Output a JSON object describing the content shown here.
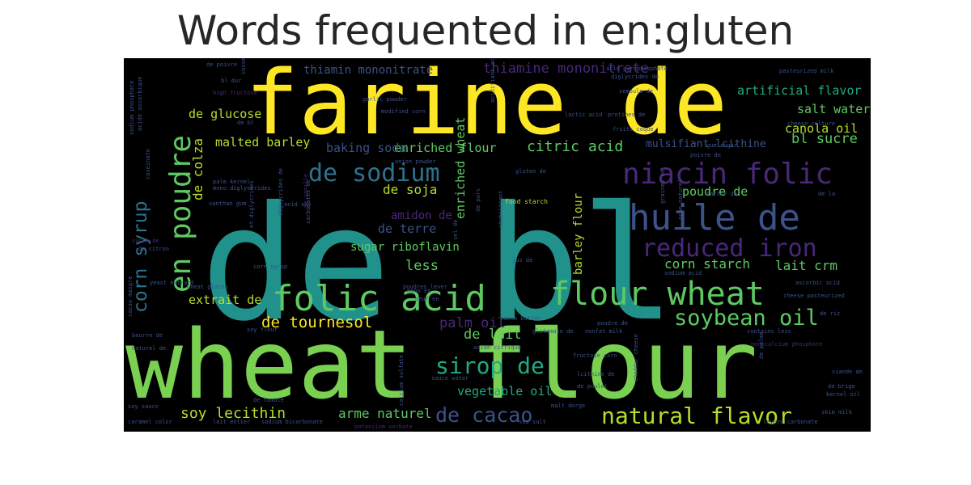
{
  "title": "Words frequented in en:gluten",
  "palette": {
    "background": "#000000",
    "title": "#262626",
    "yellow": "#fde725",
    "lightgreen": "#7ad151",
    "green": "#5ec962",
    "teal": "#21918c",
    "tealgreen": "#22a884",
    "blue": "#3b528b",
    "steel": "#2c728e",
    "purple": "#482878",
    "darkpurple": "#440154",
    "yellowgreen": "#b5de2b"
  },
  "words": [
    {
      "text": "farine de",
      "color": "#fde725"
    },
    {
      "text": "de bl",
      "color": "#21918c"
    },
    {
      "text": "wheat flour",
      "color": "#7ad151"
    },
    {
      "text": "en poudre",
      "color": "#5ec962"
    },
    {
      "text": "de sodium",
      "color": "#2c728e"
    },
    {
      "text": "niacin folic",
      "color": "#482878"
    },
    {
      "text": "huile de",
      "color": "#3b528b"
    },
    {
      "text": "reduced iron",
      "color": "#482878"
    },
    {
      "text": "folic acid",
      "color": "#5ec962"
    },
    {
      "text": "flour wheat",
      "color": "#5ec962"
    },
    {
      "text": "corn syrup",
      "color": "#2c728e"
    },
    {
      "text": "soybean oil",
      "color": "#5ec962"
    },
    {
      "text": "sirop de",
      "color": "#22a884"
    },
    {
      "text": "de cacao",
      "color": "#3b528b"
    },
    {
      "text": "natural flavor",
      "color": "#b5de2b"
    },
    {
      "text": "thiamin mononitrate",
      "color": "#3b528b"
    },
    {
      "text": "thiamine mononitrate",
      "color": "#482878"
    },
    {
      "text": "artificial flavor",
      "color": "#22a884"
    },
    {
      "text": "salt water",
      "color": "#5ec962"
    },
    {
      "text": "canola oil",
      "color": "#b5de2b"
    },
    {
      "text": "de glucose",
      "color": "#b5de2b"
    },
    {
      "text": "malted barley",
      "color": "#b5de2b"
    },
    {
      "text": "enriched flour",
      "color": "#5ec962"
    },
    {
      "text": "citric acid",
      "color": "#5ec962"
    },
    {
      "text": "baking soda",
      "color": "#3b528b"
    },
    {
      "text": "mulsifiant lcithine",
      "color": "#3b528b"
    },
    {
      "text": "bl sucre",
      "color": "#5ec962"
    },
    {
      "text": "de colza",
      "color": "#b5de2b"
    },
    {
      "text": "de soja",
      "color": "#b5de2b"
    },
    {
      "text": "enriched wheat",
      "color": "#5ec962"
    },
    {
      "text": "poudre de",
      "color": "#5ec962"
    },
    {
      "text": "amidon de",
      "color": "#482878"
    },
    {
      "text": "de terre",
      "color": "#3b528b"
    },
    {
      "text": "barley flour",
      "color": "#b5de2b"
    },
    {
      "text": "sugar riboflavin",
      "color": "#5ec962"
    },
    {
      "text": "corn starch",
      "color": "#5ec962"
    },
    {
      "text": "lait crm",
      "color": "#5ec962"
    },
    {
      "text": "less",
      "color": "#5ec962"
    },
    {
      "text": "extrait de",
      "color": "#b5de2b"
    },
    {
      "text": "de tournesol",
      "color": "#fde725"
    },
    {
      "text": "palm oil",
      "color": "#482878"
    },
    {
      "text": "de lait",
      "color": "#5ec962"
    },
    {
      "text": "soy lecithin",
      "color": "#b5de2b"
    },
    {
      "text": "arme naturel",
      "color": "#5ec962"
    },
    {
      "text": "vegetable oil",
      "color": "#22a884"
    },
    {
      "text": "de poivre",
      "color": "#3b528b"
    },
    {
      "text": "acid pyrophosphate",
      "color": "#3b528b"
    },
    {
      "text": "diglycrides de",
      "color": "#3b528b"
    },
    {
      "text": "semoule de",
      "color": "#3b528b"
    },
    {
      "text": "lactic acid",
      "color": "#3b528b"
    },
    {
      "text": "protines de",
      "color": "#3b528b"
    },
    {
      "text": "fruits coque",
      "color": "#3b528b"
    },
    {
      "text": "pasteurized milk",
      "color": "#3b528b"
    },
    {
      "text": "cheese culture",
      "color": "#3b528b"
    },
    {
      "text": "garlic powder",
      "color": "#3b528b"
    },
    {
      "text": "modified corn",
      "color": "#3b528b"
    },
    {
      "text": "gluten de",
      "color": "#3b528b"
    },
    {
      "text": "food starch",
      "color": "#b5de2b"
    },
    {
      "text": "acid soy",
      "color": "#3b528b"
    },
    {
      "text": "de vanille",
      "color": "#482878"
    },
    {
      "text": "onion powder",
      "color": "#3b528b"
    },
    {
      "text": "xanthan gum",
      "color": "#3b528b"
    },
    {
      "text": "mono diglycerides",
      "color": "#3b528b"
    },
    {
      "text": "palm kernel",
      "color": "#3b528b"
    },
    {
      "text": "de bl",
      "color": "#3b528b"
    },
    {
      "text": "high fructose",
      "color": "#482878"
    },
    {
      "text": "bl dur",
      "color": "#3b528b"
    },
    {
      "text": "sodium phosphate",
      "color": "#3b528b"
    },
    {
      "text": "acide ascorbique",
      "color": "#3b528b"
    },
    {
      "text": "yeast extract",
      "color": "#3b528b"
    },
    {
      "text": "caseinate",
      "color": "#3b528b"
    },
    {
      "text": "de citron",
      "color": "#3b528b"
    },
    {
      "text": "sucre de",
      "color": "#482878"
    },
    {
      "text": "cacao maigre",
      "color": "#3b528b"
    },
    {
      "text": "wheat gluten",
      "color": "#3b528b"
    },
    {
      "text": "beurre de",
      "color": "#3b528b"
    },
    {
      "text": "naturel de",
      "color": "#3b528b"
    },
    {
      "text": "soy flour",
      "color": "#3b528b"
    },
    {
      "text": "soy sauce",
      "color": "#3b528b"
    },
    {
      "text": "caramel color",
      "color": "#3b528b"
    },
    {
      "text": "lait entier",
      "color": "#3b528b"
    },
    {
      "text": "sodium bicarbonate",
      "color": "#3b528b"
    },
    {
      "text": "potassium sorbate",
      "color": "#482878"
    },
    {
      "text": "sea salt",
      "color": "#3b528b"
    },
    {
      "text": "malt dorge",
      "color": "#3b528b"
    },
    {
      "text": "cocoa butter",
      "color": "#3b528b"
    },
    {
      "text": "nonfat milk",
      "color": "#3b528b"
    },
    {
      "text": "fructose corn",
      "color": "#3b528b"
    },
    {
      "text": "lcithine de",
      "color": "#3b528b"
    },
    {
      "text": "de poulet",
      "color": "#3b528b"
    },
    {
      "text": "cheddar cheese",
      "color": "#3b528b"
    },
    {
      "text": "contains less",
      "color": "#3b528b"
    },
    {
      "text": "monocalcium phosphate",
      "color": "#482878"
    },
    {
      "text": "ascorbic acid",
      "color": "#3b528b"
    },
    {
      "text": "cheese pasteurized",
      "color": "#3b528b"
    },
    {
      "text": "de riz",
      "color": "#3b528b"
    },
    {
      "text": "viande de",
      "color": "#3b528b"
    },
    {
      "text": "de palme",
      "color": "#3b528b"
    },
    {
      "text": "de brige",
      "color": "#3b528b"
    },
    {
      "text": "kernel oil",
      "color": "#3b528b"
    },
    {
      "text": "skim milk",
      "color": "#3b528b"
    },
    {
      "text": "levure carbonate",
      "color": "#3b528b"
    },
    {
      "text": "sodium acid",
      "color": "#3b528b"
    },
    {
      "text": "de la",
      "color": "#3b528b"
    },
    {
      "text": "farine de",
      "color": "#3b528b"
    },
    {
      "text": "graines de",
      "color": "#3b528b"
    },
    {
      "text": "arme naturel",
      "color": "#3b528b"
    },
    {
      "text": "poivre de",
      "color": "#3b528b"
    },
    {
      "text": "gum sugar",
      "color": "#3b528b"
    },
    {
      "text": "jus de",
      "color": "#3b528b"
    },
    {
      "text": "poudres lever",
      "color": "#3b528b"
    },
    {
      "text": "acide citrique",
      "color": "#3b528b"
    },
    {
      "text": "de tomate",
      "color": "#3b528b"
    },
    {
      "text": "sauce water",
      "color": "#3b528b"
    },
    {
      "text": "calcium sulfate",
      "color": "#3b528b"
    },
    {
      "text": "mono et",
      "color": "#3b528b"
    },
    {
      "text": "acidifiant acide",
      "color": "#3b528b"
    },
    {
      "text": "sel de",
      "color": "#3b528b"
    },
    {
      "text": "de porc",
      "color": "#3b528b"
    },
    {
      "text": "glutamate de",
      "color": "#3b528b"
    },
    {
      "text": "oeuf en",
      "color": "#3b528b"
    },
    {
      "text": "stabilisant",
      "color": "#3b528b"
    },
    {
      "text": "corn syrup",
      "color": "#3b528b"
    },
    {
      "text": "et diglycrides",
      "color": "#3b528b"
    },
    {
      "text": "diglycrides de",
      "color": "#3b528b"
    },
    {
      "text": "carbonates de",
      "color": "#3b528b"
    },
    {
      "text": "poudre de",
      "color": "#3b528b"
    },
    {
      "text": "conservateur",
      "color": "#3b528b"
    }
  ]
}
